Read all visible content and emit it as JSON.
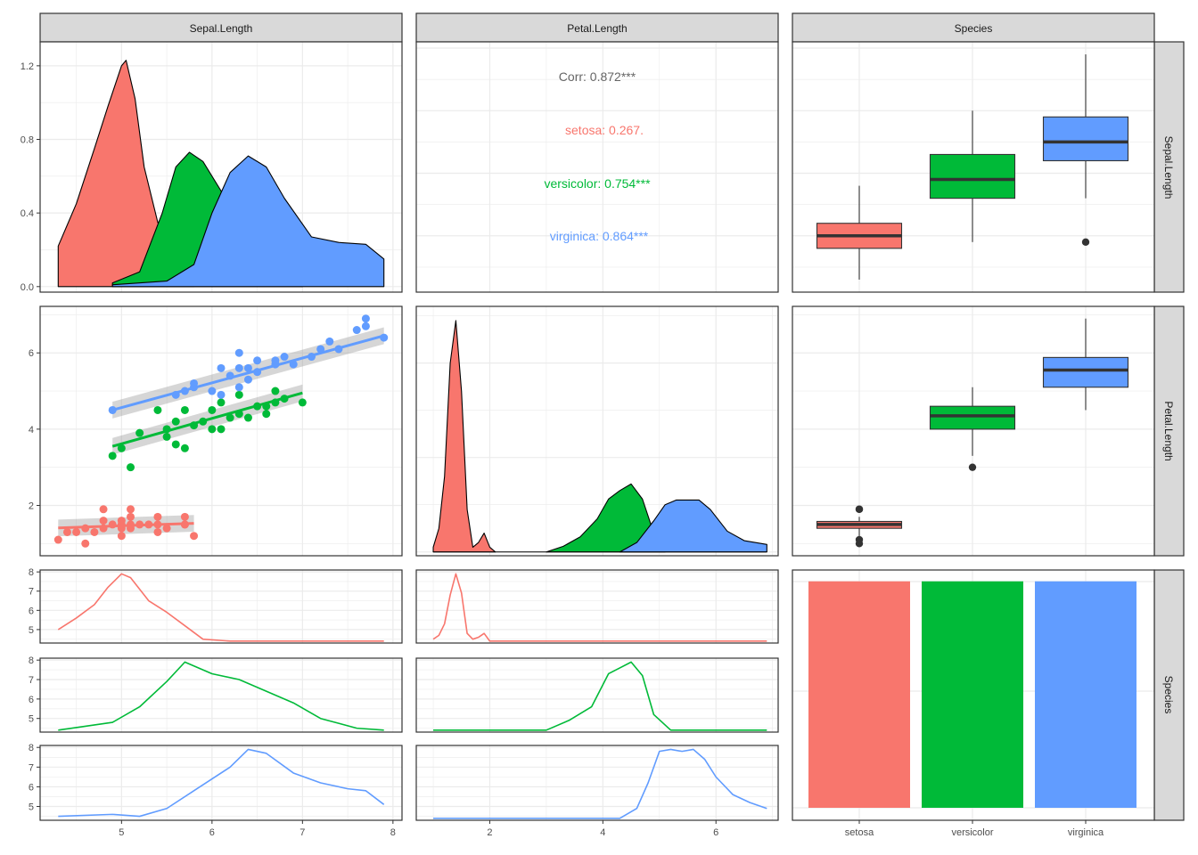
{
  "colors": {
    "setosa": "#F8766D",
    "versicolor": "#00BA38",
    "virginica": "#619CFF",
    "strip_bg": "#D9D9D9",
    "grid": "#EBEBEB",
    "panel_border": "#333333",
    "corr_overall": "#666666"
  },
  "strips": {
    "top": [
      "Sepal.Length",
      "Petal.Length",
      "Species"
    ],
    "right": [
      "Sepal.Length",
      "Petal.Length",
      "Species"
    ]
  },
  "correlation": {
    "overall": "Corr: 0.872***",
    "groups": [
      {
        "species": "setosa",
        "text": "setosa: 0.267."
      },
      {
        "species": "versicolor",
        "text": "versicolor: 0.754***"
      },
      {
        "species": "virginica",
        "text": "virginica: 0.864***"
      }
    ]
  },
  "chart_data": [
    {
      "panel": "Sepal.Length density by species",
      "type": "area",
      "xlim": [
        4.1,
        8.1
      ],
      "ylim": [
        -0.03,
        1.33
      ],
      "yticks": [
        0.0,
        0.4,
        0.8,
        1.2
      ],
      "ytick_labels": [
        "0.0",
        "0.4",
        "0.8",
        "1.2"
      ],
      "series": [
        {
          "name": "setosa",
          "x": [
            4.3,
            4.5,
            4.7,
            4.85,
            5.0,
            5.05,
            5.15,
            5.25,
            5.4,
            5.6,
            5.8
          ],
          "y": [
            0.22,
            0.45,
            0.75,
            0.98,
            1.2,
            1.23,
            1.02,
            0.65,
            0.35,
            0.12,
            0.03
          ]
        },
        {
          "name": "versicolor",
          "x": [
            4.9,
            5.2,
            5.45,
            5.6,
            5.75,
            5.9,
            6.1,
            6.35,
            6.6,
            6.85,
            7.0
          ],
          "y": [
            0.02,
            0.08,
            0.4,
            0.65,
            0.73,
            0.68,
            0.52,
            0.3,
            0.16,
            0.06,
            0.03
          ]
        },
        {
          "name": "virginica",
          "x": [
            4.9,
            5.5,
            5.8,
            6.0,
            6.2,
            6.4,
            6.6,
            6.8,
            7.1,
            7.4,
            7.7,
            7.9
          ],
          "y": [
            0.01,
            0.03,
            0.12,
            0.4,
            0.62,
            0.71,
            0.65,
            0.48,
            0.27,
            0.24,
            0.23,
            0.15
          ]
        }
      ]
    },
    {
      "panel": "Sepal.Length vs Petal.Length boxplot",
      "type": "boxplot",
      "ylim": [
        4.1,
        8.1
      ],
      "boxes": [
        {
          "name": "setosa",
          "min": 4.3,
          "q1": 4.8,
          "median": 5.0,
          "q3": 5.2,
          "max": 5.8,
          "outliers": []
        },
        {
          "name": "versicolor",
          "min": 4.9,
          "q1": 5.6,
          "median": 5.9,
          "q3": 6.3,
          "max": 7.0,
          "outliers": []
        },
        {
          "name": "virginica",
          "min": 5.6,
          "q1": 6.2,
          "median": 6.5,
          "q3": 6.9,
          "max": 7.9,
          "outliers": [
            4.9
          ]
        }
      ]
    },
    {
      "panel": "Petal.Length vs Sepal.Length scatter",
      "type": "scatter",
      "xlim": [
        4.1,
        8.1
      ],
      "ylim": [
        0.68,
        7.22
      ],
      "yticks": [
        2,
        4,
        6
      ],
      "ytick_labels": [
        "2",
        "4",
        "6"
      ],
      "series": [
        {
          "name": "setosa",
          "x": [
            4.3,
            4.4,
            4.5,
            4.6,
            4.7,
            4.8,
            4.8,
            4.9,
            5.0,
            5.0,
            5.0,
            5.1,
            5.1,
            5.1,
            5.2,
            5.3,
            5.4,
            5.4,
            5.5,
            5.7,
            5.7,
            5.8,
            4.6,
            4.8,
            5.0,
            5.1,
            5.4,
            5.7
          ],
          "y": [
            1.1,
            1.3,
            1.3,
            1.4,
            1.3,
            1.6,
            1.4,
            1.5,
            1.6,
            1.4,
            1.2,
            1.5,
            1.9,
            1.4,
            1.5,
            1.5,
            1.7,
            1.3,
            1.4,
            1.5,
            1.7,
            1.2,
            1.0,
            1.9,
            1.5,
            1.7,
            1.5,
            1.5
          ],
          "fit": [
            [
              4.3,
              1.41
            ],
            [
              5.8,
              1.53
            ]
          ]
        },
        {
          "name": "versicolor",
          "x": [
            4.9,
            5.0,
            5.1,
            5.5,
            5.6,
            5.7,
            5.7,
            5.8,
            5.9,
            6.0,
            6.0,
            6.1,
            6.2,
            6.3,
            6.4,
            6.5,
            6.6,
            6.7,
            6.7,
            6.8,
            7.0,
            5.2,
            5.4,
            5.6,
            6.1,
            6.3,
            5.5,
            6.6
          ],
          "y": [
            3.3,
            3.5,
            3.0,
            4.0,
            4.2,
            4.5,
            3.5,
            4.1,
            4.2,
            4.5,
            4.0,
            4.7,
            4.3,
            4.9,
            4.3,
            4.6,
            4.4,
            5.0,
            4.7,
            4.8,
            4.7,
            3.9,
            4.5,
            3.6,
            4.0,
            4.4,
            3.8,
            4.6
          ],
          "fit": [
            [
              4.9,
              3.55
            ],
            [
              7.0,
              4.95
            ]
          ]
        },
        {
          "name": "virginica",
          "x": [
            4.9,
            5.6,
            5.7,
            5.8,
            5.8,
            6.0,
            6.1,
            6.2,
            6.3,
            6.3,
            6.4,
            6.4,
            6.5,
            6.7,
            6.7,
            6.8,
            6.9,
            7.1,
            7.2,
            7.3,
            7.4,
            7.6,
            7.7,
            7.7,
            7.9,
            6.3,
            6.5,
            6.1
          ],
          "y": [
            4.5,
            4.9,
            5.0,
            5.1,
            5.2,
            5.0,
            4.9,
            5.4,
            5.6,
            6.0,
            5.3,
            5.6,
            5.5,
            5.7,
            5.8,
            5.9,
            5.7,
            5.9,
            6.1,
            6.3,
            6.1,
            6.6,
            6.7,
            6.9,
            6.4,
            5.1,
            5.8,
            5.6
          ],
          "fit": [
            [
              4.9,
              4.5
            ],
            [
              7.9,
              6.45
            ]
          ]
        }
      ]
    },
    {
      "panel": "Petal.Length density by species",
      "type": "area",
      "xlim": [
        0.7,
        7.1
      ],
      "ylim": [
        -0.04,
        2.6
      ],
      "series": [
        {
          "name": "setosa",
          "x": [
            1.0,
            1.1,
            1.2,
            1.3,
            1.4,
            1.5,
            1.6,
            1.7,
            1.8,
            1.9,
            2.0,
            2.1
          ],
          "y": [
            0.05,
            0.25,
            0.8,
            2.0,
            2.45,
            1.7,
            0.45,
            0.05,
            0.1,
            0.2,
            0.05,
            0.0
          ]
        },
        {
          "name": "versicolor",
          "x": [
            3.0,
            3.3,
            3.6,
            3.9,
            4.1,
            4.3,
            4.5,
            4.7,
            4.9,
            5.1
          ],
          "y": [
            0.0,
            0.06,
            0.16,
            0.35,
            0.56,
            0.65,
            0.72,
            0.56,
            0.2,
            0.0
          ]
        },
        {
          "name": "virginica",
          "x": [
            4.3,
            4.6,
            4.9,
            5.1,
            5.3,
            5.5,
            5.7,
            5.9,
            6.2,
            6.5,
            6.9
          ],
          "y": [
            0.0,
            0.1,
            0.33,
            0.5,
            0.55,
            0.55,
            0.55,
            0.45,
            0.22,
            0.12,
            0.08
          ]
        }
      ]
    },
    {
      "panel": "Species vs Petal.Length boxplot",
      "type": "boxplot",
      "ylim": [
        0.68,
        7.22
      ],
      "boxes": [
        {
          "name": "setosa",
          "min": 1.1,
          "q1": 1.4,
          "median": 1.5,
          "q3": 1.58,
          "max": 1.7,
          "outliers": [
            1.0,
            1.1,
            1.9,
            1.9
          ]
        },
        {
          "name": "versicolor",
          "min": 3.3,
          "q1": 4.0,
          "median": 4.35,
          "q3": 4.6,
          "max": 5.1,
          "outliers": [
            3.0
          ]
        },
        {
          "name": "virginica",
          "min": 4.5,
          "q1": 5.1,
          "median": 5.55,
          "q3": 5.88,
          "max": 6.9,
          "outliers": []
        }
      ]
    },
    {
      "panel": "Sepal.Length histogram by species",
      "type": "line",
      "xlim": [
        4.1,
        8.1
      ],
      "xticks": [
        5,
        6,
        7,
        8
      ],
      "xtick_labels": [
        "5",
        "6",
        "7",
        "8"
      ],
      "yticks": [
        5,
        6,
        7,
        8
      ],
      "ytick_labels": [
        "5",
        "6",
        "7",
        "8"
      ],
      "ylim": [
        4.3,
        8.1
      ],
      "series": [
        {
          "name": "setosa",
          "x": [
            4.3,
            4.5,
            4.7,
            4.85,
            5.0,
            5.1,
            5.3,
            5.5,
            5.7,
            5.9,
            6.2,
            7.9
          ],
          "y": [
            5.0,
            5.6,
            6.3,
            7.2,
            7.9,
            7.7,
            6.5,
            5.9,
            5.2,
            4.5,
            4.4,
            4.4
          ]
        },
        {
          "name": "versicolor",
          "x": [
            4.3,
            4.9,
            5.2,
            5.5,
            5.7,
            6.0,
            6.3,
            6.6,
            6.9,
            7.2,
            7.6,
            7.9
          ],
          "y": [
            4.4,
            4.8,
            5.6,
            6.9,
            7.9,
            7.3,
            7.0,
            6.4,
            5.8,
            5.0,
            4.5,
            4.4
          ]
        },
        {
          "name": "virginica",
          "x": [
            4.3,
            4.9,
            5.2,
            5.5,
            5.8,
            6.2,
            6.4,
            6.6,
            6.9,
            7.2,
            7.5,
            7.7,
            7.9
          ],
          "y": [
            4.5,
            4.6,
            4.5,
            4.9,
            5.8,
            7.0,
            7.9,
            7.7,
            6.7,
            6.2,
            5.9,
            5.8,
            5.1
          ]
        }
      ]
    },
    {
      "panel": "Petal.Length histogram by species",
      "type": "line",
      "xlim": [
        0.7,
        7.1
      ],
      "xticks": [
        2,
        4,
        6
      ],
      "xtick_labels": [
        "2",
        "4",
        "6"
      ],
      "ylim": [
        4.3,
        8.1
      ],
      "series": [
        {
          "name": "setosa",
          "x": [
            1.0,
            1.1,
            1.2,
            1.3,
            1.4,
            1.5,
            1.6,
            1.7,
            1.8,
            1.9,
            2.0,
            6.9
          ],
          "y": [
            4.5,
            4.7,
            5.3,
            6.8,
            7.9,
            6.9,
            4.8,
            4.5,
            4.6,
            4.8,
            4.4,
            4.4
          ]
        },
        {
          "name": "versicolor",
          "x": [
            1.0,
            3.0,
            3.4,
            3.8,
            4.1,
            4.3,
            4.5,
            4.7,
            4.9,
            5.2,
            6.9
          ],
          "y": [
            4.4,
            4.4,
            4.9,
            5.6,
            7.3,
            7.6,
            7.9,
            7.2,
            5.2,
            4.4,
            4.4
          ]
        },
        {
          "name": "virginica",
          "x": [
            1.0,
            4.3,
            4.6,
            4.8,
            5.0,
            5.2,
            5.4,
            5.6,
            5.8,
            6.0,
            6.3,
            6.6,
            6.9
          ],
          "y": [
            4.4,
            4.4,
            4.9,
            6.2,
            7.8,
            7.9,
            7.8,
            7.9,
            7.4,
            6.5,
            5.6,
            5.2,
            4.9
          ]
        }
      ]
    },
    {
      "panel": "Species bar counts",
      "type": "bar",
      "categories": [
        "setosa",
        "versicolor",
        "virginica"
      ],
      "values": [
        50,
        50,
        50
      ],
      "ylim": [
        0,
        52.5
      ]
    }
  ]
}
